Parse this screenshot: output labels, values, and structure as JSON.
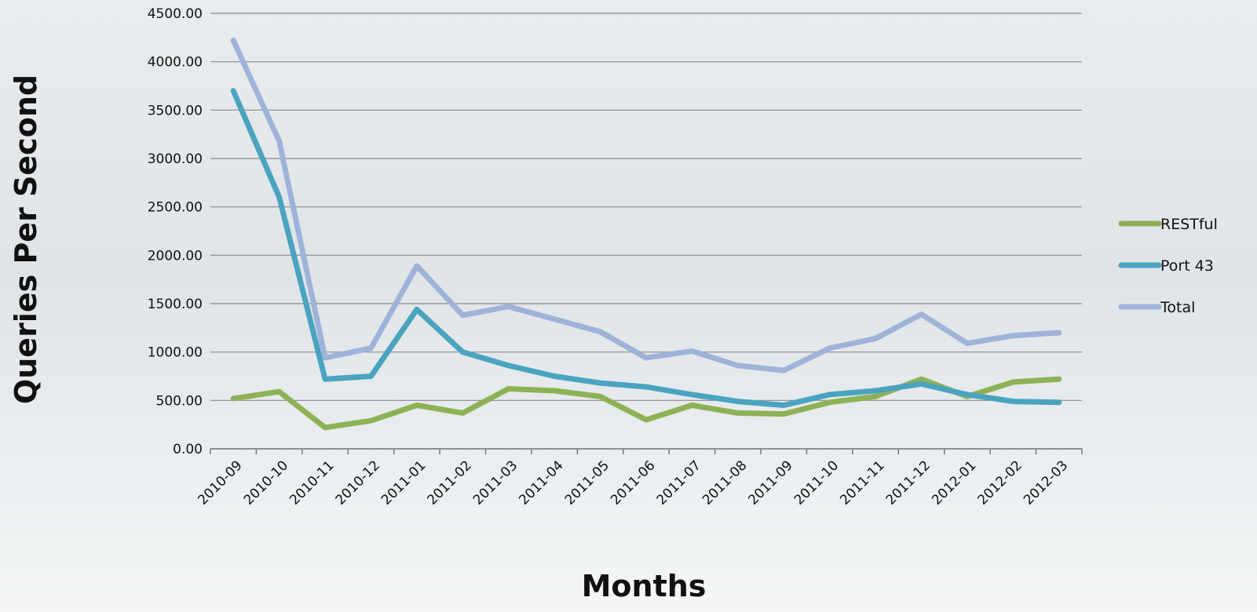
{
  "chart_data": {
    "type": "line",
    "x_label": "Months",
    "y_label": "Queries Per Second",
    "categories": [
      "2010-09",
      "2010-10",
      "2010-11",
      "2010-12",
      "2011-01",
      "2011-02",
      "2011-03",
      "2011-04",
      "2011-05",
      "2011-06",
      "2011-07",
      "2011-08",
      "2011-09",
      "2011-10",
      "2011-11",
      "2011-12",
      "2012-01",
      "2012-02",
      "2012-03"
    ],
    "series": [
      {
        "name": "RESTful",
        "color": "#8db255",
        "values": [
          520,
          590,
          220,
          290,
          450,
          370,
          620,
          600,
          540,
          300,
          450,
          370,
          360,
          480,
          540,
          720,
          540,
          690,
          720
        ]
      },
      {
        "name": "Port 43",
        "color": "#4aa3bf",
        "values": [
          3700,
          2600,
          720,
          750,
          1440,
          1000,
          860,
          750,
          680,
          640,
          560,
          490,
          450,
          560,
          600,
          670,
          560,
          490,
          480
        ]
      },
      {
        "name": "Total",
        "color": "#9fb3d9",
        "values": [
          4220,
          3180,
          940,
          1040,
          1890,
          1380,
          1470,
          1340,
          1210,
          940,
          1010,
          860,
          810,
          1040,
          1140,
          1390,
          1090,
          1170,
          1200
        ]
      }
    ],
    "ylim": [
      0,
      4500
    ],
    "yticks": [
      {
        "value": 0,
        "label": "0.00"
      },
      {
        "value": 500,
        "label": "500.00"
      },
      {
        "value": 1000,
        "label": "1000.00"
      },
      {
        "value": 1500,
        "label": "1500.00"
      },
      {
        "value": 2000,
        "label": "2000.00"
      },
      {
        "value": 2500,
        "label": "2500.00"
      },
      {
        "value": 3000,
        "label": "3000.00"
      },
      {
        "value": 3500,
        "label": "3500.00"
      },
      {
        "value": 4000,
        "label": "4000.00"
      },
      {
        "value": 4500,
        "label": "4500.00"
      }
    ],
    "grid": true,
    "legend": "right"
  }
}
